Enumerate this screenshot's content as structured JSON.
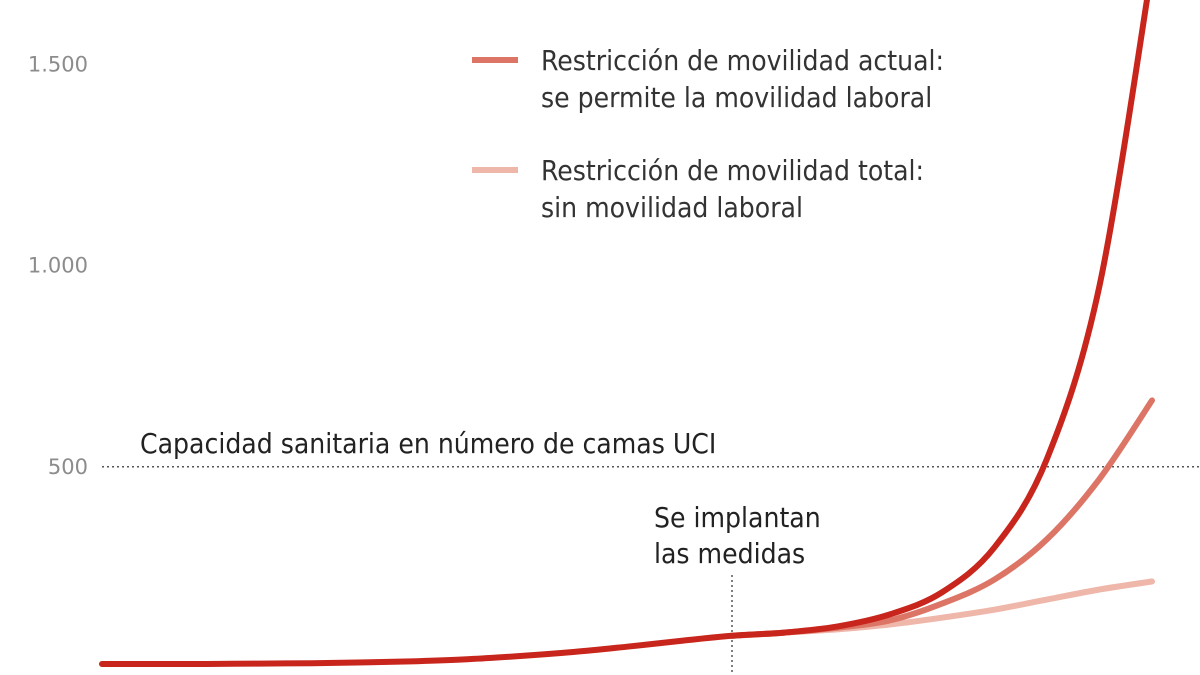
{
  "chart_data": {
    "type": "line",
    "title": "",
    "xlabel": "",
    "ylabel": "",
    "ylim": [
      0,
      1660
    ],
    "y_ticks": [
      {
        "value": 500,
        "label": "500"
      },
      {
        "value": 1000,
        "label": "1.000"
      },
      {
        "value": 1500,
        "label": "1.500"
      }
    ],
    "x": [
      0,
      5,
      10,
      15,
      20,
      25,
      30,
      35,
      40,
      45,
      50,
      55,
      60,
      65,
      70,
      75,
      80,
      85,
      90,
      95,
      100
    ],
    "intervention_x": 60,
    "series": [
      {
        "name": "",
        "color": "#c8261c",
        "values": [
          10,
          10,
          10,
          11,
          12,
          14,
          17,
          22,
          30,
          40,
          53,
          67,
          80,
          88,
          103,
          133,
          188,
          300,
          520,
          950,
          1740
        ]
      },
      {
        "name": "Restricción de movilidad actual: se permite la movilidad laboral",
        "color": "#dd7566",
        "values": [
          null,
          null,
          null,
          null,
          null,
          null,
          null,
          null,
          null,
          null,
          null,
          null,
          80,
          88,
          100,
          118,
          160,
          220,
          320,
          470,
          665
        ]
      },
      {
        "name": "Restricción de movilidad total: sin movilidad laboral",
        "color": "#efb6aa",
        "values": [
          null,
          null,
          null,
          null,
          null,
          null,
          null,
          null,
          null,
          null,
          null,
          null,
          80,
          88,
          96,
          108,
          125,
          145,
          170,
          195,
          215
        ]
      }
    ],
    "legend": {
      "placement": "top-center",
      "items": [
        {
          "line1": "Restricción de movilidad actual:",
          "line2": "se permite la movilidad laboral",
          "color": "#dd7566"
        },
        {
          "line1": "Restricción de movilidad total:",
          "line2": "sin movilidad laboral",
          "color": "#efb6aa"
        }
      ]
    },
    "annotations": {
      "capacity_value": 500,
      "capacity_label": "Capacidad sanitaria en número de camas UCI",
      "intervention_line1": "Se implantan",
      "intervention_line2": "las medidas"
    },
    "grid": false
  }
}
